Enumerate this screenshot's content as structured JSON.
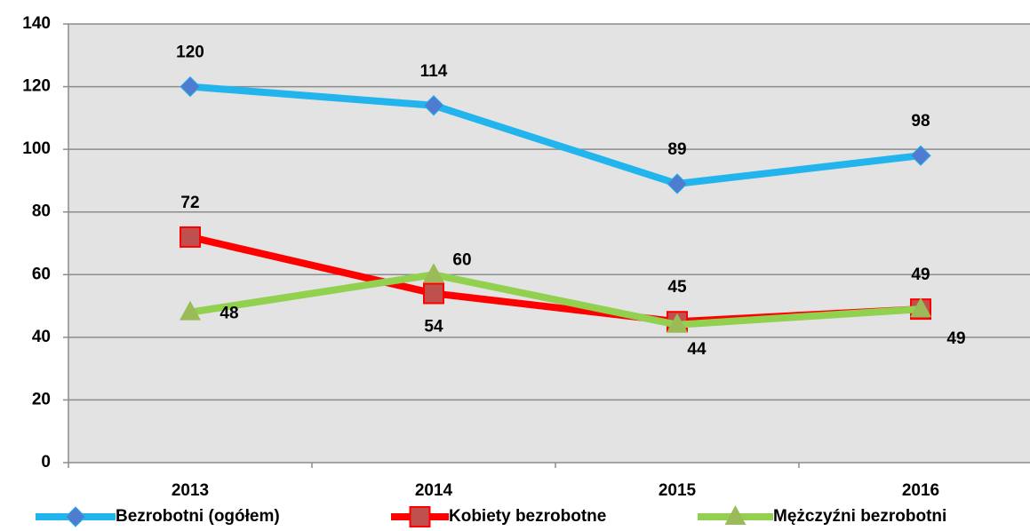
{
  "chart_data": {
    "type": "line",
    "categories": [
      "2013",
      "2014",
      "2015",
      "2016"
    ],
    "series": [
      {
        "name": "Bezrobotni (ogółem)",
        "color": "#22b4ec",
        "marker_color": "#4f7bd0",
        "marker": "diamond",
        "values": [
          120,
          114,
          89,
          98
        ]
      },
      {
        "name": "Kobiety bezrobotne",
        "color": "#ff0000",
        "marker_color": "#c0504d",
        "marker": "square",
        "values": [
          72,
          54,
          45,
          49
        ]
      },
      {
        "name": "Mężczyźni bezrobotni",
        "color": "#92d050",
        "marker_color": "#9bbb59",
        "marker": "triangle",
        "values": [
          48,
          60,
          44,
          49
        ]
      }
    ],
    "ylim": [
      0,
      140
    ],
    "yticks": [
      0,
      20,
      40,
      60,
      80,
      100,
      120,
      140
    ],
    "grid": true,
    "legend": "bottom"
  }
}
